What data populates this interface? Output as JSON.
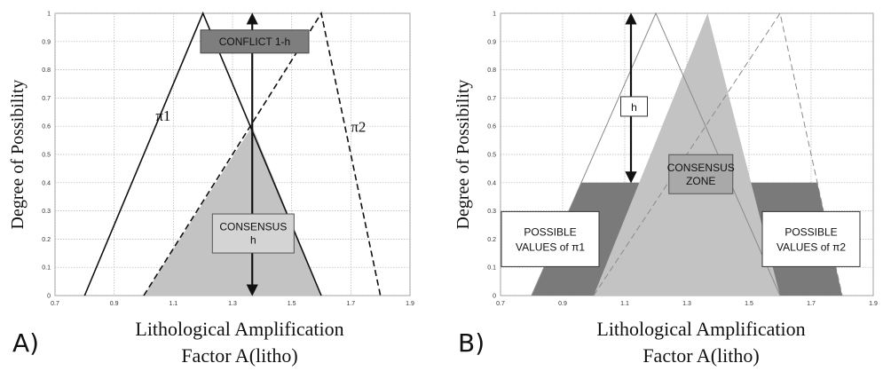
{
  "chart_data": [
    {
      "type": "line",
      "panel_label": "A)",
      "ylabel": "Degree of Possibility",
      "xlabel_line1": "Lithological Amplification",
      "xlabel_line2": "Factor A(litho)",
      "xlim": [
        0.7,
        1.9
      ],
      "ylim": [
        0,
        1
      ],
      "xticks": [
        "0.7",
        "0.9",
        "1.1",
        "1.3",
        "1.5",
        "1.7",
        "1.9"
      ],
      "yticks": [
        "0",
        "0.1",
        "0.2",
        "0.3",
        "0.4",
        "0.5",
        "0.6",
        "0.7",
        "0.8",
        "0.9",
        "1"
      ],
      "grid": true,
      "series": [
        {
          "name": "π1",
          "style": "solid",
          "x": [
            0.8,
            1.2,
            1.6
          ],
          "y": [
            0,
            1,
            0
          ]
        },
        {
          "name": "π2",
          "style": "dashed",
          "x": [
            1.0,
            1.6,
            1.8
          ],
          "y": [
            0,
            1,
            0
          ]
        }
      ],
      "regions": [
        {
          "label": "CONSENSUS h",
          "color": "#c3c3c3",
          "x": [
            1.0,
            1.3667,
            1.6
          ],
          "y": [
            0,
            0.6,
            0
          ]
        }
      ],
      "annotations": [
        {
          "text": "CONFLICT 1-h",
          "style": "dark-box",
          "x": 1.375,
          "y": 0.9
        },
        {
          "text_lines": [
            "CONSENSUS",
            "h"
          ],
          "style": "light-box",
          "x": 1.37,
          "y": 0.22
        }
      ],
      "arrows": [
        {
          "x": 1.3667,
          "y_from": 0,
          "y_to": 1
        }
      ]
    },
    {
      "type": "line",
      "panel_label": "B)",
      "ylabel": "Degree of Possibility",
      "xlabel_line1": "Lithological Amplification",
      "xlabel_line2": "Factor A(litho)",
      "xlim": [
        0.7,
        1.9
      ],
      "ylim": [
        0,
        1
      ],
      "xticks": [
        "0.7",
        "0.9",
        "1.1",
        "1.3",
        "1.5",
        "1.7",
        "1.9"
      ],
      "yticks": [
        "0",
        "0.1",
        "0.2",
        "0.3",
        "0.4",
        "0.5",
        "0.6",
        "0.7",
        "0.8",
        "0.9",
        "1"
      ],
      "grid": true,
      "series": [
        {
          "name": "π1",
          "style": "thin-solid",
          "x": [
            0.8,
            1.2,
            1.6
          ],
          "y": [
            0,
            1,
            0
          ]
        },
        {
          "name": "π2",
          "style": "thin-dashed",
          "x": [
            1.0,
            1.6,
            1.8
          ],
          "y": [
            0,
            1,
            0
          ]
        }
      ],
      "regions": [
        {
          "label": "POSSIBLE VALUES of π1 and π2",
          "color": "#7a7a7a",
          "x": [
            0.8,
            0.96,
            1.72,
            1.8
          ],
          "y": [
            0,
            0.4,
            0.4,
            0
          ]
        },
        {
          "label": "CONSENSUS ZONE",
          "color": "#c3c3c3",
          "x": [
            1.0,
            1.3667,
            1.6
          ],
          "y": [
            0,
            1,
            0
          ]
        }
      ],
      "annotations": [
        {
          "text": "h",
          "style": "white-box",
          "x": 1.13,
          "y": 0.67
        },
        {
          "text_lines": [
            "CONSENSUS",
            "ZONE"
          ],
          "style": "mid-box",
          "x": 1.345,
          "y": 0.43
        },
        {
          "text_lines": [
            "POSSIBLE",
            "VALUES of π1"
          ],
          "style": "white-box",
          "x": 0.86,
          "y": 0.2
        },
        {
          "text_lines": [
            "POSSIBLE",
            "VALUES of π2"
          ],
          "style": "white-box",
          "x": 1.7,
          "y": 0.2
        }
      ],
      "arrows": [
        {
          "x": 1.12,
          "y_from": 0.4,
          "y_to": 1
        }
      ]
    }
  ]
}
